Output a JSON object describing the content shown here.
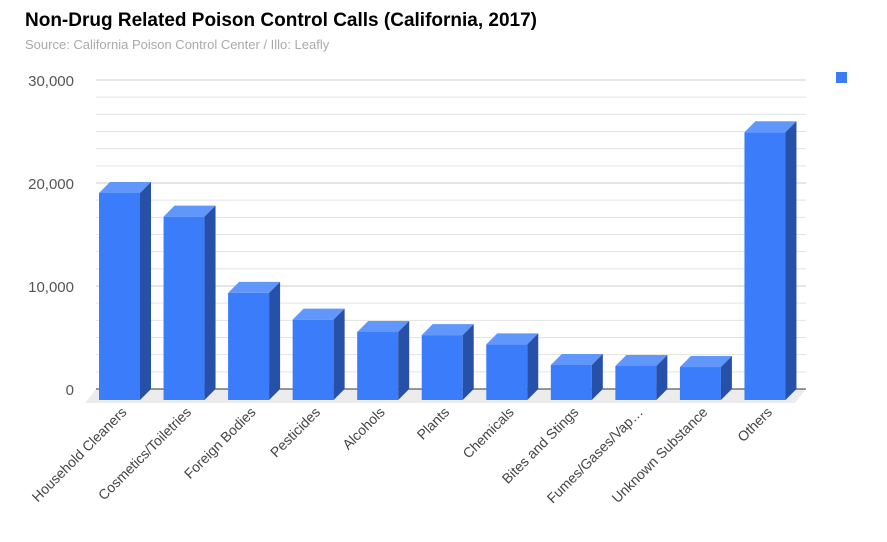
{
  "title": "Non-Drug Related Poison Control Calls (California, 2017)",
  "subtitle": "Source: California Poison Control Center / Illo: Leafly",
  "chart_data": {
    "type": "bar",
    "style": "3d",
    "title": "Non-Drug Related Poison Control Calls (California, 2017)",
    "categories": [
      "Household Cleaners",
      "Cosmetics/Toiletries",
      "Foreign Bodies",
      "Pesticides",
      "Alcohols",
      "Plants",
      "Chemicals",
      "Bites and Stings",
      "Fumes/Gases/Vap…",
      "Unknown Substance",
      "Others"
    ],
    "values": [
      20100,
      17800,
      10400,
      7800,
      6600,
      6300,
      5400,
      3400,
      3300,
      3200,
      26000
    ],
    "ylim": [
      0,
      30000
    ],
    "yticks": [
      "0",
      "10,000",
      "20,000",
      "30,000"
    ],
    "grid": true,
    "legend": "top-right",
    "colors": {
      "front": "#3b7cfb",
      "top": "#6196fb",
      "side": "#2751a8"
    }
  }
}
